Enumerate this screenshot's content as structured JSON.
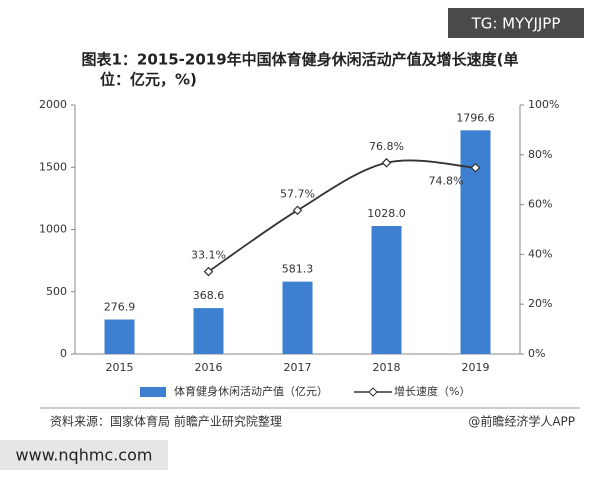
{
  "chart_data": {
    "type": "bar-line",
    "title": "图表1：2015-2019年中国体育健身休闲活动产值及增长速度(单",
    "subtitle": "位：亿元，%)",
    "categories": [
      "2015",
      "2016",
      "2017",
      "2018",
      "2019"
    ],
    "series": [
      {
        "name": "体育健身休闲活动产值（亿元）",
        "type": "bar",
        "color": "#3d7fd0",
        "values": [
          276.9,
          368.6,
          581.3,
          1028.0,
          1796.6
        ],
        "value_labels": [
          "276.9",
          "368.6",
          "581.3",
          "1028.0",
          "1796.6"
        ]
      },
      {
        "name": "增长速度（%）",
        "type": "line",
        "axis": "y2",
        "color": "#333333",
        "values": [
          null,
          33.1,
          57.7,
          76.8,
          74.8
        ],
        "value_labels": [
          null,
          "33.1%",
          "57.7%",
          "76.8%",
          "74.8%"
        ]
      }
    ],
    "ylim": [
      0,
      2000
    ],
    "yticks": [
      0,
      500,
      1000,
      1500,
      2000
    ],
    "y2lim": [
      0,
      100
    ],
    "y2ticks": [
      {
        "value": 0,
        "label": "0%"
      },
      {
        "value": 20,
        "label": "20%"
      },
      {
        "value": 40,
        "label": "40%"
      },
      {
        "value": 60,
        "label": "60%"
      },
      {
        "value": 80,
        "label": "80%"
      },
      {
        "value": 100,
        "label": "100%"
      }
    ],
    "legend": "bottom"
  },
  "source": "资料来源：国家体育局 前瞻产业研究院整理",
  "credit": "@前瞻经济学人APP",
  "watermark_top": "TG: MYYJJPP",
  "watermark_bottom": "www.nqhmc.com"
}
